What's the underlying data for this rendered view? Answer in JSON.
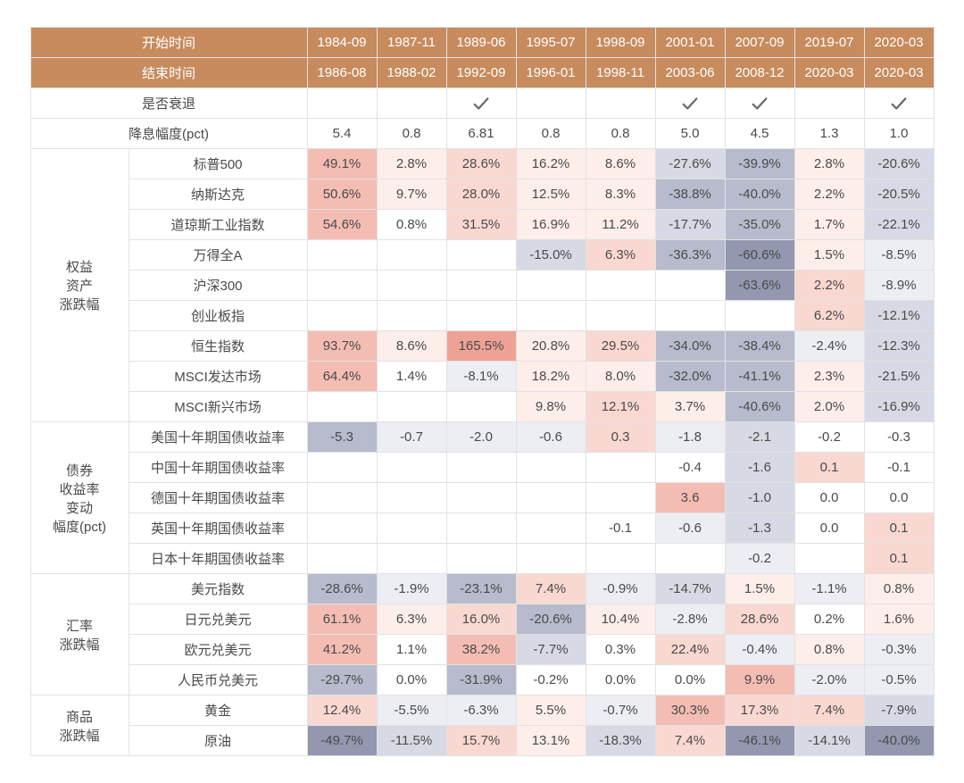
{
  "heat": {
    "neg4": "#9398b0",
    "neg3": "#b7bbcd",
    "neg2": "#d7d9e4",
    "neg1": "#eceef4",
    "zero": "#ffffff",
    "pos1": "#fdeeea",
    "pos2": "#f9d8d2",
    "pos3": "#f4bdb4",
    "pos4": "#eea296"
  },
  "check_color": "#6b6b6b",
  "headers": {
    "start": "开始时间",
    "end": "结束时间",
    "periods": [
      "1984-09",
      "1987-11",
      "1989-06",
      "1995-07",
      "1998-09",
      "2001-01",
      "2007-09",
      "2019-07",
      "2020-03"
    ],
    "end_periods": [
      "1986-08",
      "1988-02",
      "1992-09",
      "1996-01",
      "1998-11",
      "2003-06",
      "2008-12",
      "2020-03",
      "2020-03"
    ]
  },
  "recession": {
    "label": "是否衰退",
    "flags": [
      false,
      false,
      true,
      false,
      false,
      true,
      true,
      false,
      true
    ]
  },
  "cut": {
    "label": "降息幅度(pct)",
    "vals": [
      "5.4",
      "0.8",
      "6.81",
      "0.8",
      "0.8",
      "5.0",
      "4.5",
      "1.3",
      "1.0"
    ]
  },
  "groups": [
    {
      "label": "权益\n资产\n涨跌幅",
      "rows": [
        {
          "label": "标普500",
          "cells": [
            {
              "v": "49.1%",
              "c": "pos3"
            },
            {
              "v": "2.8%",
              "c": "pos1"
            },
            {
              "v": "28.6%",
              "c": "pos2"
            },
            {
              "v": "16.2%",
              "c": "pos1"
            },
            {
              "v": "8.6%",
              "c": "pos1"
            },
            {
              "v": "-27.6%",
              "c": "neg2"
            },
            {
              "v": "-39.9%",
              "c": "neg3"
            },
            {
              "v": "2.8%",
              "c": "pos1"
            },
            {
              "v": "-20.6%",
              "c": "neg2"
            }
          ]
        },
        {
          "label": "纳斯达克",
          "cells": [
            {
              "v": "50.6%",
              "c": "pos3"
            },
            {
              "v": "9.7%",
              "c": "pos1"
            },
            {
              "v": "28.0%",
              "c": "pos2"
            },
            {
              "v": "12.5%",
              "c": "pos1"
            },
            {
              "v": "8.3%",
              "c": "pos1"
            },
            {
              "v": "-38.8%",
              "c": "neg3"
            },
            {
              "v": "-40.0%",
              "c": "neg3"
            },
            {
              "v": "2.2%",
              "c": "pos1"
            },
            {
              "v": "-20.5%",
              "c": "neg2"
            }
          ]
        },
        {
          "label": "道琼斯工业指数",
          "cells": [
            {
              "v": "54.6%",
              "c": "pos3"
            },
            {
              "v": "0.8%",
              "c": "zero"
            },
            {
              "v": "31.5%",
              "c": "pos2"
            },
            {
              "v": "16.9%",
              "c": "pos1"
            },
            {
              "v": "11.2%",
              "c": "pos1"
            },
            {
              "v": "-17.7%",
              "c": "neg2"
            },
            {
              "v": "-35.0%",
              "c": "neg3"
            },
            {
              "v": "1.7%",
              "c": "pos1"
            },
            {
              "v": "-22.1%",
              "c": "neg2"
            }
          ]
        },
        {
          "label": "万得全A",
          "cells": [
            {
              "v": ""
            },
            {
              "v": ""
            },
            {
              "v": ""
            },
            {
              "v": "-15.0%",
              "c": "neg2"
            },
            {
              "v": "6.3%",
              "c": "pos2"
            },
            {
              "v": "-36.3%",
              "c": "neg3"
            },
            {
              "v": "-60.6%",
              "c": "neg4"
            },
            {
              "v": "1.5%",
              "c": "pos1"
            },
            {
              "v": "-8.5%",
              "c": "neg1"
            }
          ]
        },
        {
          "label": "沪深300",
          "cells": [
            {
              "v": ""
            },
            {
              "v": ""
            },
            {
              "v": ""
            },
            {
              "v": ""
            },
            {
              "v": ""
            },
            {
              "v": ""
            },
            {
              "v": "-63.6%",
              "c": "neg4"
            },
            {
              "v": "2.2%",
              "c": "pos2"
            },
            {
              "v": "-8.9%",
              "c": "neg1"
            }
          ]
        },
        {
          "label": "创业板指",
          "cells": [
            {
              "v": ""
            },
            {
              "v": ""
            },
            {
              "v": ""
            },
            {
              "v": ""
            },
            {
              "v": ""
            },
            {
              "v": ""
            },
            {
              "v": ""
            },
            {
              "v": "6.2%",
              "c": "pos2"
            },
            {
              "v": "-12.1%",
              "c": "neg2"
            }
          ]
        },
        {
          "label": "恒生指数",
          "cells": [
            {
              "v": "93.7%",
              "c": "pos3"
            },
            {
              "v": "8.6%",
              "c": "pos1"
            },
            {
              "v": "165.5%",
              "c": "pos4"
            },
            {
              "v": "20.8%",
              "c": "pos1"
            },
            {
              "v": "29.5%",
              "c": "pos2"
            },
            {
              "v": "-34.0%",
              "c": "neg3"
            },
            {
              "v": "-38.4%",
              "c": "neg3"
            },
            {
              "v": "-2.4%",
              "c": "neg1"
            },
            {
              "v": "-12.3%",
              "c": "neg2"
            }
          ]
        },
        {
          "label": "MSCI发达市场",
          "cells": [
            {
              "v": "64.4%",
              "c": "pos3"
            },
            {
              "v": "1.4%",
              "c": "zero"
            },
            {
              "v": "-8.1%",
              "c": "neg1"
            },
            {
              "v": "18.2%",
              "c": "pos1"
            },
            {
              "v": "8.0%",
              "c": "pos1"
            },
            {
              "v": "-32.0%",
              "c": "neg3"
            },
            {
              "v": "-41.1%",
              "c": "neg3"
            },
            {
              "v": "2.3%",
              "c": "pos1"
            },
            {
              "v": "-21.5%",
              "c": "neg2"
            }
          ]
        },
        {
          "label": "MSCI新兴市场",
          "cells": [
            {
              "v": ""
            },
            {
              "v": ""
            },
            {
              "v": ""
            },
            {
              "v": "9.8%",
              "c": "pos1"
            },
            {
              "v": "12.1%",
              "c": "pos2"
            },
            {
              "v": "3.7%",
              "c": "pos1"
            },
            {
              "v": "-40.6%",
              "c": "neg3"
            },
            {
              "v": "2.0%",
              "c": "pos1"
            },
            {
              "v": "-16.9%",
              "c": "neg2"
            }
          ]
        }
      ]
    },
    {
      "label": "债券\n收益率\n变动\n幅度(pct)",
      "rows": [
        {
          "label": "美国十年期国债收益率",
          "cells": [
            {
              "v": "-5.3",
              "c": "neg3"
            },
            {
              "v": "-0.7",
              "c": "neg1"
            },
            {
              "v": "-2.0",
              "c": "neg1"
            },
            {
              "v": "-0.6",
              "c": "neg1"
            },
            {
              "v": "0.3",
              "c": "pos2"
            },
            {
              "v": "-1.8",
              "c": "neg1"
            },
            {
              "v": "-2.1",
              "c": "neg2"
            },
            {
              "v": "-0.2",
              "c": "zero"
            },
            {
              "v": "-0.3",
              "c": "zero"
            }
          ]
        },
        {
          "label": "中国十年期国债收益率",
          "cells": [
            {
              "v": ""
            },
            {
              "v": ""
            },
            {
              "v": ""
            },
            {
              "v": ""
            },
            {
              "v": ""
            },
            {
              "v": "-0.4",
              "c": "zero"
            },
            {
              "v": "-1.6",
              "c": "neg2"
            },
            {
              "v": "0.1",
              "c": "pos2"
            },
            {
              "v": "-0.1",
              "c": "zero"
            }
          ]
        },
        {
          "label": "德国十年期国债收益率",
          "cells": [
            {
              "v": ""
            },
            {
              "v": ""
            },
            {
              "v": ""
            },
            {
              "v": ""
            },
            {
              "v": ""
            },
            {
              "v": "3.6",
              "c": "pos3"
            },
            {
              "v": "-1.0",
              "c": "neg2"
            },
            {
              "v": "0.0",
              "c": "zero"
            },
            {
              "v": "0.0",
              "c": "zero"
            }
          ]
        },
        {
          "label": "英国十年期国债收益率",
          "cells": [
            {
              "v": ""
            },
            {
              "v": ""
            },
            {
              "v": ""
            },
            {
              "v": ""
            },
            {
              "v": "-0.1",
              "c": "zero"
            },
            {
              "v": "-0.6",
              "c": "neg1"
            },
            {
              "v": "-1.3",
              "c": "neg2"
            },
            {
              "v": "0.0",
              "c": "zero"
            },
            {
              "v": "0.1",
              "c": "pos2"
            }
          ]
        },
        {
          "label": "日本十年期国债收益率",
          "cells": [
            {
              "v": ""
            },
            {
              "v": ""
            },
            {
              "v": ""
            },
            {
              "v": ""
            },
            {
              "v": ""
            },
            {
              "v": ""
            },
            {
              "v": "-0.2",
              "c": "neg1"
            },
            {
              "v": ""
            },
            {
              "v": "0.1",
              "c": "pos2"
            }
          ]
        }
      ]
    },
    {
      "label": "汇率\n涨跌幅",
      "rows": [
        {
          "label": "美元指数",
          "cells": [
            {
              "v": "-28.6%",
              "c": "neg3"
            },
            {
              "v": "-1.9%",
              "c": "neg1"
            },
            {
              "v": "-23.1%",
              "c": "neg3"
            },
            {
              "v": "7.4%",
              "c": "pos2"
            },
            {
              "v": "-0.9%",
              "c": "neg1"
            },
            {
              "v": "-14.7%",
              "c": "neg2"
            },
            {
              "v": "1.5%",
              "c": "pos1"
            },
            {
              "v": "-1.1%",
              "c": "neg1"
            },
            {
              "v": "0.8%",
              "c": "pos1"
            }
          ]
        },
        {
          "label": "日元兑美元",
          "cells": [
            {
              "v": "61.1%",
              "c": "pos3"
            },
            {
              "v": "6.3%",
              "c": "pos1"
            },
            {
              "v": "16.0%",
              "c": "pos2"
            },
            {
              "v": "-20.6%",
              "c": "neg3"
            },
            {
              "v": "10.4%",
              "c": "pos1"
            },
            {
              "v": "-2.8%",
              "c": "neg1"
            },
            {
              "v": "28.6%",
              "c": "pos2"
            },
            {
              "v": "0.2%",
              "c": "zero"
            },
            {
              "v": "1.6%",
              "c": "pos1"
            }
          ]
        },
        {
          "label": "欧元兑美元",
          "cells": [
            {
              "v": "41.2%",
              "c": "pos3"
            },
            {
              "v": "1.1%",
              "c": "zero"
            },
            {
              "v": "38.2%",
              "c": "pos3"
            },
            {
              "v": "-7.7%",
              "c": "neg2"
            },
            {
              "v": "0.3%",
              "c": "zero"
            },
            {
              "v": "22.4%",
              "c": "pos2"
            },
            {
              "v": "-0.4%",
              "c": "neg1"
            },
            {
              "v": "0.8%",
              "c": "pos1"
            },
            {
              "v": "-0.3%",
              "c": "neg1"
            }
          ]
        },
        {
          "label": "人民币兑美元",
          "cells": [
            {
              "v": "-29.7%",
              "c": "neg3"
            },
            {
              "v": "0.0%",
              "c": "zero"
            },
            {
              "v": "-31.9%",
              "c": "neg3"
            },
            {
              "v": "-0.2%",
              "c": "zero"
            },
            {
              "v": "0.0%",
              "c": "zero"
            },
            {
              "v": "0.0%",
              "c": "zero"
            },
            {
              "v": "9.9%",
              "c": "pos3"
            },
            {
              "v": "-2.0%",
              "c": "neg1"
            },
            {
              "v": "-0.5%",
              "c": "neg1"
            }
          ]
        }
      ]
    },
    {
      "label": "商品\n涨跌幅",
      "rows": [
        {
          "label": "黄金",
          "cells": [
            {
              "v": "12.4%",
              "c": "pos2"
            },
            {
              "v": "-5.5%",
              "c": "neg1"
            },
            {
              "v": "-6.3%",
              "c": "neg1"
            },
            {
              "v": "5.5%",
              "c": "pos1"
            },
            {
              "v": "-0.7%",
              "c": "neg1"
            },
            {
              "v": "30.3%",
              "c": "pos3"
            },
            {
              "v": "17.3%",
              "c": "pos2"
            },
            {
              "v": "7.4%",
              "c": "pos2"
            },
            {
              "v": "-7.9%",
              "c": "neg2"
            }
          ]
        },
        {
          "label": "原油",
          "cells": [
            {
              "v": "-49.7%",
              "c": "neg4"
            },
            {
              "v": "-11.5%",
              "c": "neg2"
            },
            {
              "v": "15.7%",
              "c": "pos2"
            },
            {
              "v": "13.1%",
              "c": "pos1"
            },
            {
              "v": "-18.3%",
              "c": "neg2"
            },
            {
              "v": "7.4%",
              "c": "pos2"
            },
            {
              "v": "-46.1%",
              "c": "neg4"
            },
            {
              "v": "-14.1%",
              "c": "neg2"
            },
            {
              "v": "-40.0%",
              "c": "neg4"
            }
          ]
        }
      ]
    }
  ]
}
